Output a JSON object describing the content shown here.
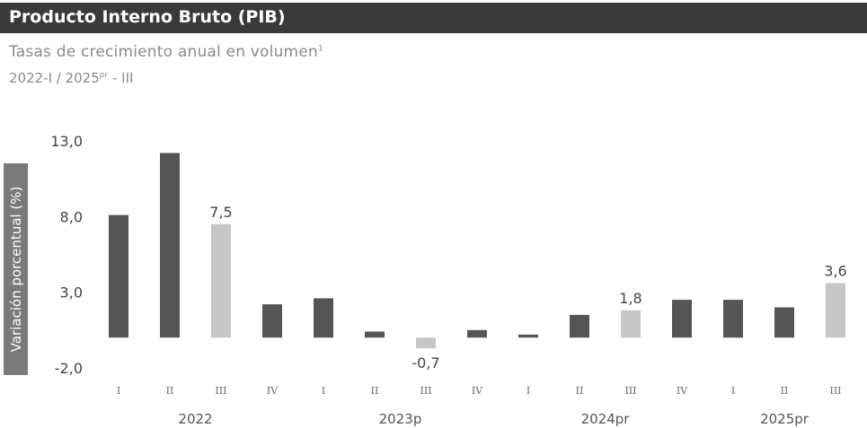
{
  "title": "Producto Interno Bruto (PIB)",
  "subtitle": "Tasas de crecimiento anual en volumen",
  "subtitle_sup": "1",
  "period_main": "2022-I / 2025",
  "period_sup": "pr",
  "period_end": " - III",
  "colors": {
    "dark": "#555555",
    "light": "#c6c6c6",
    "title_bg": "#3a3a3a"
  },
  "chart_data": {
    "type": "bar",
    "ylabel": "Variación porcentual (%)",
    "ylim": [
      -2.0,
      13.0
    ],
    "yticks": [
      "13,0",
      "8,0",
      "3,0",
      "-2,0"
    ],
    "ytick_values": [
      13.0,
      8.0,
      3.0,
      -2.0
    ],
    "categories": [
      "I",
      "II",
      "III",
      "IV",
      "I",
      "II",
      "III",
      "IV",
      "I",
      "II",
      "III",
      "IV",
      "I",
      "II",
      "III"
    ],
    "years": [
      "2022",
      "2023p",
      "2024pr",
      "2025pr"
    ],
    "values": [
      8.1,
      12.2,
      7.5,
      2.2,
      2.6,
      0.4,
      -0.7,
      0.5,
      0.2,
      1.5,
      1.8,
      2.5,
      2.5,
      2.0,
      3.6
    ],
    "highlight": [
      false,
      false,
      true,
      false,
      false,
      false,
      true,
      false,
      false,
      false,
      true,
      false,
      false,
      false,
      true
    ],
    "data_labels": {
      "2": "7,5",
      "6": "-0,7",
      "10": "1,8",
      "14": "3,6"
    },
    "grid": false,
    "legend": "none"
  }
}
